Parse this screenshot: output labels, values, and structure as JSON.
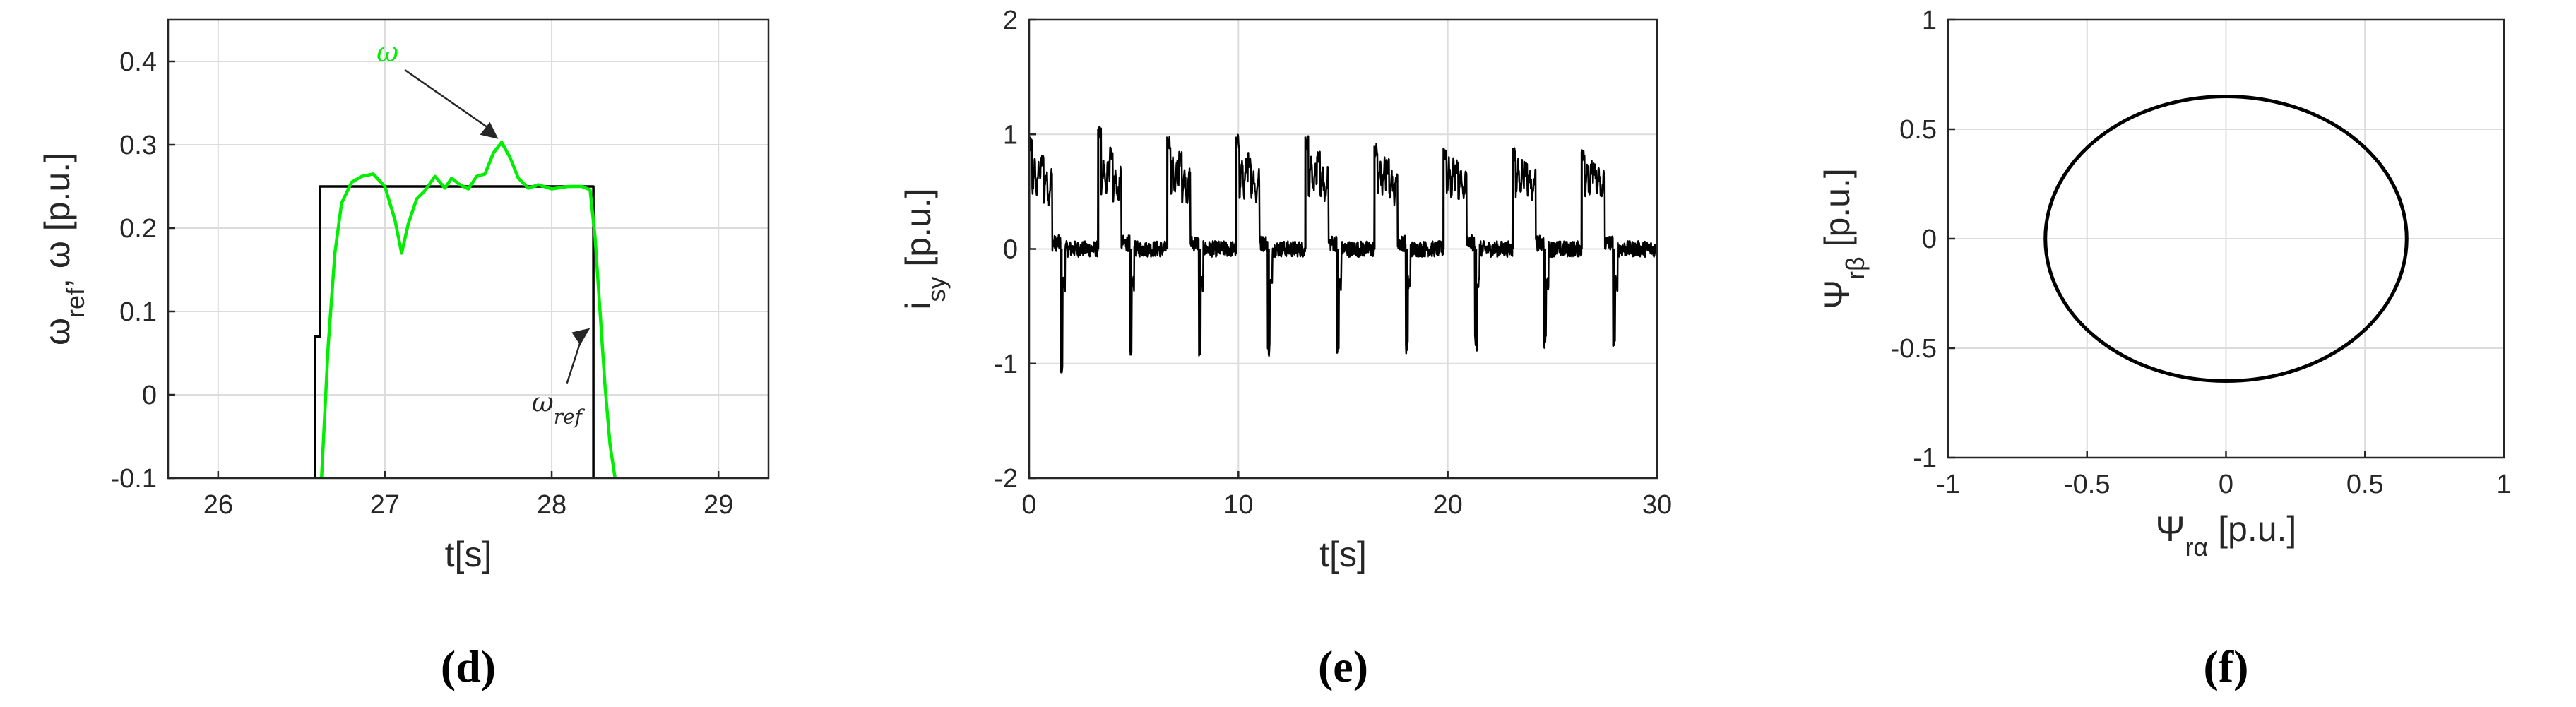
{
  "chart_data": [
    {
      "id": "d",
      "type": "line",
      "panel_label": "(d)",
      "xlabel": "t[s]",
      "ylabel_parts": [
        "ω",
        "ref",
        ", ω [p.u.]"
      ],
      "xlim": [
        25.7,
        29.3
      ],
      "ylim": [
        -0.1,
        0.45
      ],
      "xticks": [
        26,
        27,
        28,
        29
      ],
      "xtick_labels": [
        "26",
        "27",
        "28",
        "29"
      ],
      "yticks": [
        -0.1,
        0,
        0.1,
        0.2,
        0.3,
        0.4
      ],
      "ytick_labels": [
        "-0.1",
        "0",
        "0.1",
        "0.2",
        "0.3",
        "0.4"
      ],
      "grid": true,
      "series": [
        {
          "color": "#000000",
          "x": [
            26.58,
            26.58,
            26.61,
            26.61,
            28.25,
            28.25
          ],
          "y": [
            -0.1,
            0.07,
            0.07,
            0.25,
            0.25,
            -0.1
          ]
        },
        {
          "color": "#00ee00",
          "x": [
            26.62,
            26.66,
            26.7,
            26.74,
            26.8,
            26.86,
            26.93,
            27.0,
            27.06,
            27.1,
            27.14,
            27.19,
            27.24,
            27.3,
            27.33,
            27.36,
            27.4,
            27.45,
            27.5,
            27.55,
            27.6,
            27.65,
            27.7,
            27.75,
            27.8,
            27.86,
            27.92,
            28.0,
            28.1,
            28.18,
            28.23,
            28.26,
            28.29,
            28.32,
            28.35,
            28.38
          ],
          "y": [
            -0.1,
            0.06,
            0.17,
            0.23,
            0.255,
            0.262,
            0.265,
            0.25,
            0.21,
            0.17,
            0.205,
            0.235,
            0.245,
            0.262,
            0.255,
            0.248,
            0.26,
            0.252,
            0.247,
            0.262,
            0.265,
            0.29,
            0.303,
            0.285,
            0.26,
            0.248,
            0.252,
            0.247,
            0.25,
            0.25,
            0.246,
            0.19,
            0.1,
            0.01,
            -0.06,
            -0.1
          ]
        }
      ],
      "annotations": [
        {
          "text": "ω",
          "color": "#00ee00",
          "x": 26.95,
          "y": 0.4,
          "arrow_to": [
            27.68,
            0.307
          ]
        },
        {
          "text_parts": [
            "ω",
            "ref"
          ],
          "color": "#262626",
          "x": 27.88,
          "y": -0.02,
          "arrow_to": [
            28.23,
            0.08
          ]
        }
      ]
    },
    {
      "id": "e",
      "type": "line",
      "panel_label": "(e)",
      "xlabel": "t[s]",
      "ylabel_parts": [
        "i",
        "sy",
        " [p.u.]"
      ],
      "xlim": [
        0,
        30
      ],
      "ylim": [
        -2,
        2
      ],
      "xticks": [
        0,
        10,
        20,
        30
      ],
      "xtick_labels": [
        "0",
        "10",
        "20",
        "30"
      ],
      "yticks": [
        -2,
        -1,
        0,
        1,
        2
      ],
      "ytick_labels": [
        "-2",
        "-1",
        "0",
        "1",
        "2"
      ],
      "grid": true,
      "pulse_period_s": 3.3,
      "pulse_starts_s": [
        0.0,
        3.3,
        6.6,
        9.9,
        13.2,
        16.5,
        19.8,
        23.1,
        26.4
      ],
      "positive_peaks": [
        0.95,
        1.05,
        0.98,
        0.98,
        0.98,
        0.9,
        0.88,
        0.87,
        0.85
      ],
      "negative_peaks": [
        -1.02,
        -0.93,
        -0.88,
        -0.87,
        -0.87,
        -0.85,
        -0.82,
        -0.8,
        -0.78
      ],
      "series": [
        {
          "color": "#000000",
          "note": "step-like current pulses with noise"
        }
      ]
    },
    {
      "id": "f",
      "type": "line",
      "panel_label": "(f)",
      "xlabel_parts": [
        "Ψ",
        "rα",
        " [p.u.]"
      ],
      "ylabel_parts": [
        "Ψ",
        "rβ",
        " [p.u.]"
      ],
      "xlim": [
        -1,
        1
      ],
      "ylim": [
        -1,
        1
      ],
      "xticks": [
        -1,
        -0.5,
        0,
        0.5,
        1
      ],
      "xtick_labels": [
        "-1",
        "-0.5",
        "0",
        "0.5",
        "1"
      ],
      "yticks": [
        -1,
        -0.5,
        0,
        0.5,
        1
      ],
      "ytick_labels": [
        "-1",
        "-0.5",
        "0",
        "0.5",
        "1"
      ],
      "grid": true,
      "circle_radius": 0.65,
      "series": [
        {
          "color": "#000000",
          "shape": "circle",
          "center": [
            0,
            0
          ],
          "radius": 0.65
        }
      ]
    }
  ]
}
